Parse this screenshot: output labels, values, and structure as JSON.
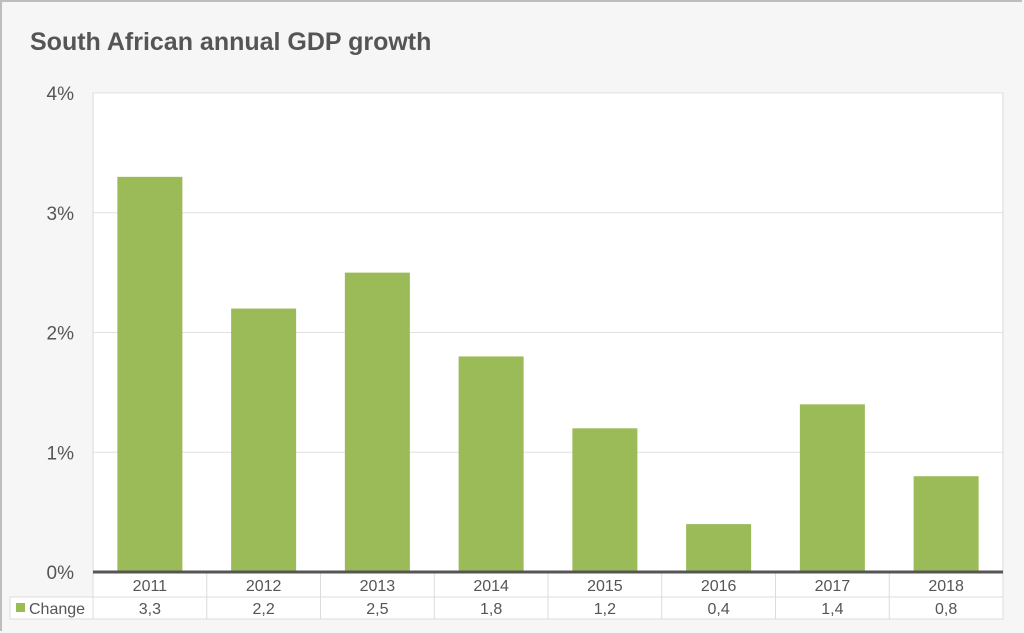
{
  "chart_data": {
    "type": "bar",
    "title": "South African annual GDP growth",
    "categories": [
      "2011",
      "2012",
      "2013",
      "2014",
      "2015",
      "2016",
      "2017",
      "2018"
    ],
    "series": [
      {
        "name": "Change",
        "values": [
          3.3,
          2.2,
          2.5,
          1.8,
          1.2,
          0.4,
          1.4,
          0.8
        ],
        "labels": [
          "3,3",
          "2,2",
          "2,5",
          "1,8",
          "1,2",
          "0,4",
          "1,4",
          "0,8"
        ],
        "color": "#9bbb59"
      }
    ],
    "yticks": [
      "0%",
      "1%",
      "2%",
      "3%",
      "4%"
    ],
    "ylim": [
      0,
      4
    ],
    "xlabel": "",
    "ylabel": "",
    "grid": true,
    "legend": "data-table"
  }
}
